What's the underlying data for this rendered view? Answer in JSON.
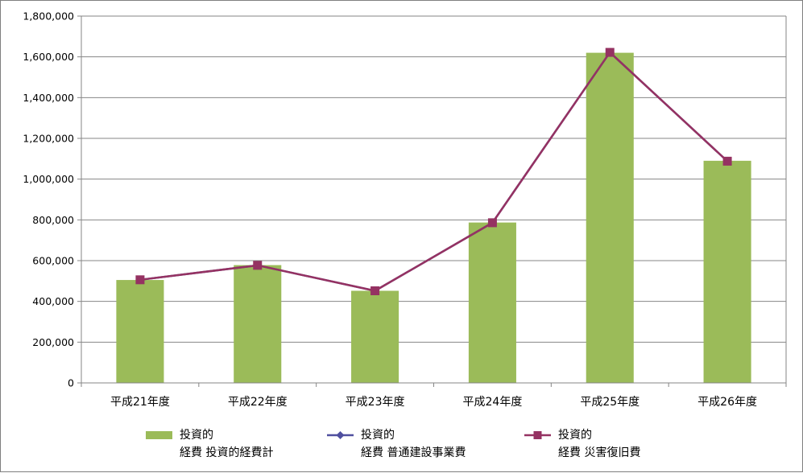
{
  "chart_data": {
    "type": "bar",
    "categories": [
      "平成21年度",
      "平成22年度",
      "平成23年度",
      "平成24年度",
      "平成25年度",
      "平成26年度"
    ],
    "series": [
      {
        "name_line1": "投資的",
        "name_line2": "経費 投資的経費計",
        "kind": "bar",
        "color": "#9bbb59",
        "values": [
          505000,
          578000,
          452000,
          787000,
          1620000,
          1090000
        ]
      },
      {
        "name_line1": "投資的",
        "name_line2": "経費 普通建設事業費",
        "kind": "line",
        "marker": "diamond",
        "color": "#4f4f9f",
        "values": [
          506000,
          577000,
          452000,
          786000,
          1622000,
          1088000
        ]
      },
      {
        "name_line1": "投資的",
        "name_line2": "経費 災害復旧費",
        "kind": "line",
        "marker": "square",
        "color": "#953262",
        "values": [
          506000,
          577000,
          452000,
          786000,
          1622000,
          1088000
        ]
      }
    ],
    "ylim": [
      0,
      1800000
    ],
    "yticks": [
      "0",
      "200,000",
      "400,000",
      "600,000",
      "800,000",
      "1,000,000",
      "1,200,000",
      "1,400,000",
      "1,600,000",
      "1,800,000"
    ],
    "grid": true,
    "legend_position": "bottom"
  }
}
